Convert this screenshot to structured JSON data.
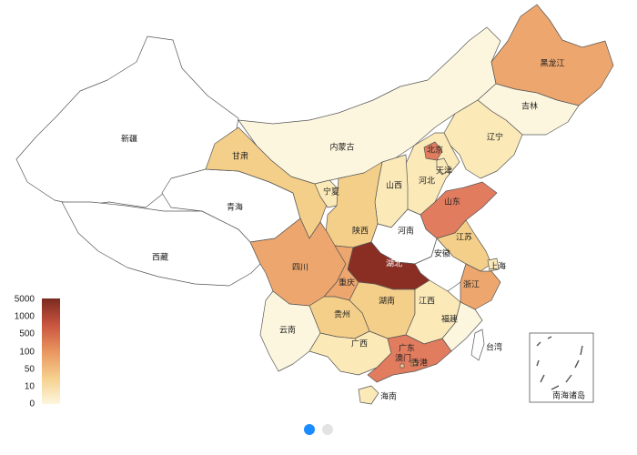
{
  "colors": {
    "c0": "#fdf6df",
    "c1": "#fbe9b8",
    "c2": "#f4cf89",
    "c3": "#eda66d",
    "c4": "#e27c5f",
    "c5": "#8a2e24",
    "white": "#ffffff"
  },
  "legend": {
    "ticks": [
      "5000",
      "1000",
      "500",
      "100",
      "50",
      "10",
      "0"
    ]
  },
  "provinces": [
    {
      "name": "新疆",
      "color": "white"
    },
    {
      "name": "西藏",
      "color": "white"
    },
    {
      "name": "青海",
      "color": "white"
    },
    {
      "name": "甘肃",
      "color": "c2"
    },
    {
      "name": "内蒙古",
      "color": "c0"
    },
    {
      "name": "黑龙江",
      "color": "c3"
    },
    {
      "name": "吉林",
      "color": "c0"
    },
    {
      "name": "辽宁",
      "color": "c1"
    },
    {
      "name": "北京",
      "color": "c4"
    },
    {
      "name": "天津",
      "color": "c1"
    },
    {
      "name": "河北",
      "color": "c1"
    },
    {
      "name": "山西",
      "color": "c1"
    },
    {
      "name": "宁夏",
      "color": "c1"
    },
    {
      "name": "陕西",
      "color": "c2"
    },
    {
      "name": "山东",
      "color": "c4"
    },
    {
      "name": "河南",
      "color": "white"
    },
    {
      "name": "江苏",
      "color": "c2"
    },
    {
      "name": "安徽",
      "color": "white"
    },
    {
      "name": "上海",
      "color": "c1"
    },
    {
      "name": "浙江",
      "color": "c3"
    },
    {
      "name": "湖北",
      "color": "c5"
    },
    {
      "name": "四川",
      "color": "c3"
    },
    {
      "name": "重庆",
      "color": "c3"
    },
    {
      "name": "湖南",
      "color": "c2"
    },
    {
      "name": "江西",
      "color": "c1"
    },
    {
      "name": "贵州",
      "color": "c2"
    },
    {
      "name": "福建",
      "color": "c0"
    },
    {
      "name": "云南",
      "color": "c0"
    },
    {
      "name": "广西",
      "color": "c1"
    },
    {
      "name": "广东",
      "color": "c4"
    },
    {
      "name": "台湾",
      "color": "white"
    },
    {
      "name": "香港",
      "color": "c3"
    },
    {
      "name": "澳门",
      "color": "c2"
    },
    {
      "name": "海南",
      "color": "c1"
    }
  ],
  "inset_label": "南海诸岛",
  "pager": {
    "pages": 2,
    "active": 0
  }
}
